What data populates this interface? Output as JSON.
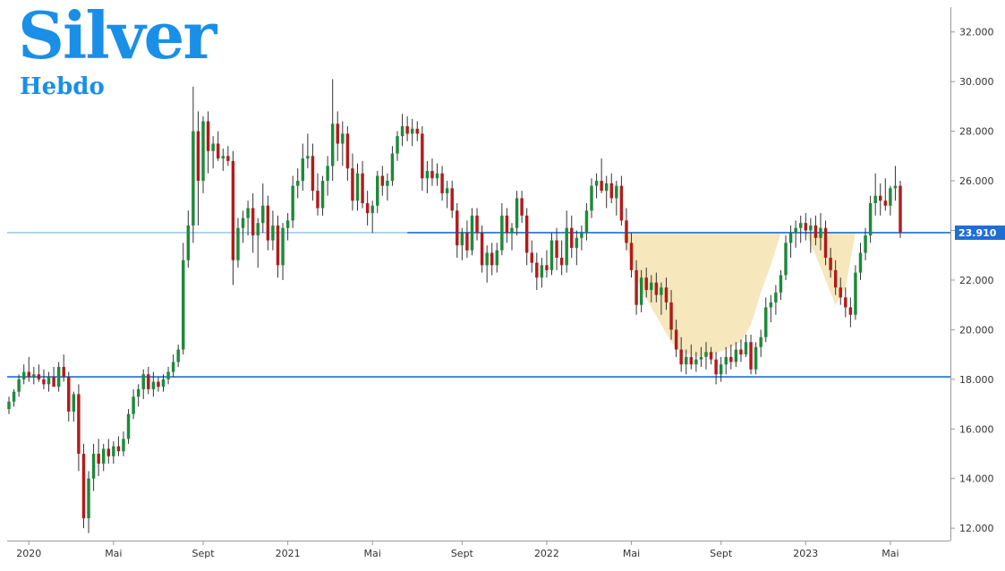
{
  "brand": {
    "title": "Silver",
    "subtitle": "Hebdo"
  },
  "colors": {
    "bull": "#1e8a3a",
    "bear": "#b31b1b",
    "wick": "#333333",
    "hline": "#1f6fd1",
    "hline_light": "#8fc2ee",
    "fill_zone": "#f6e7bc",
    "price_tag_bg": "#1f6fd1",
    "brand": "#1a8fe8"
  },
  "chart_data": {
    "type": "candlestick",
    "title": "",
    "ylim": [
      11.5,
      33
    ],
    "y_ticks": [
      {
        "value": 32,
        "label": "32.000"
      },
      {
        "value": 30,
        "label": "30.000"
      },
      {
        "value": 28,
        "label": "28.000"
      },
      {
        "value": 26,
        "label": "26.000"
      },
      {
        "value": 24,
        "label": "24.000"
      },
      {
        "value": 22,
        "label": "22.000"
      },
      {
        "value": 20,
        "label": "20.000"
      },
      {
        "value": 18,
        "label": "18.000"
      },
      {
        "value": 16,
        "label": "16.000"
      },
      {
        "value": 14,
        "label": "14.000"
      },
      {
        "value": 12,
        "label": "12.000"
      }
    ],
    "x_ticks": [
      {
        "index": 4,
        "label": "2020"
      },
      {
        "index": 21,
        "label": "Mai"
      },
      {
        "index": 39,
        "label": "Sept"
      },
      {
        "index": 56,
        "label": "2021"
      },
      {
        "index": 73,
        "label": "Mai"
      },
      {
        "index": 91,
        "label": "Sept"
      },
      {
        "index": 108,
        "label": "2022"
      },
      {
        "index": 125,
        "label": "Mai"
      },
      {
        "index": 143,
        "label": "Sept"
      },
      {
        "index": 160,
        "label": "2023"
      },
      {
        "index": 177,
        "label": "Mai"
      }
    ],
    "horizontal_lines": [
      {
        "value": 23.91,
        "style": "solid",
        "light_left": true
      },
      {
        "value": 18.1,
        "style": "solid",
        "light_left": false
      }
    ],
    "current_price": {
      "value": 23.91,
      "label": "23.910"
    },
    "shaded_zone": {
      "ceiling": 23.91,
      "points": [
        [
          123,
          23.91
        ],
        [
          125,
          22.8
        ],
        [
          127,
          21.6
        ],
        [
          129,
          20.9
        ],
        [
          131,
          20.2
        ],
        [
          133,
          19.5
        ],
        [
          135,
          19.1
        ],
        [
          138,
          18.9
        ],
        [
          141,
          19.0
        ],
        [
          144,
          19.2
        ],
        [
          147,
          19.5
        ],
        [
          149,
          20.2
        ],
        [
          151,
          21.5
        ],
        [
          153,
          22.6
        ],
        [
          155,
          23.91
        ],
        [
          160,
          23.91
        ],
        [
          162,
          23.0
        ],
        [
          164,
          22.0
        ],
        [
          166,
          21.0
        ],
        [
          168,
          21.7
        ],
        [
          170,
          23.91
        ]
      ]
    },
    "candles": [
      {
        "o": 16.8,
        "h": 17.3,
        "l": 16.6,
        "c": 17.1
      },
      {
        "o": 17.1,
        "h": 17.6,
        "l": 16.9,
        "c": 17.5
      },
      {
        "o": 17.5,
        "h": 18.2,
        "l": 17.3,
        "c": 18.0
      },
      {
        "o": 18.0,
        "h": 18.6,
        "l": 17.8,
        "c": 18.3
      },
      {
        "o": 18.3,
        "h": 18.9,
        "l": 17.9,
        "c": 18.1
      },
      {
        "o": 18.1,
        "h": 18.5,
        "l": 17.8,
        "c": 18.2
      },
      {
        "o": 18.2,
        "h": 18.6,
        "l": 17.9,
        "c": 18.0
      },
      {
        "o": 18.0,
        "h": 18.4,
        "l": 17.6,
        "c": 17.8
      },
      {
        "o": 17.8,
        "h": 18.3,
        "l": 17.5,
        "c": 18.1
      },
      {
        "o": 18.1,
        "h": 18.5,
        "l": 17.7,
        "c": 17.7
      },
      {
        "o": 17.7,
        "h": 18.7,
        "l": 17.5,
        "c": 18.5
      },
      {
        "o": 18.5,
        "h": 19.0,
        "l": 17.9,
        "c": 18.1
      },
      {
        "o": 18.1,
        "h": 18.3,
        "l": 16.3,
        "c": 16.7
      },
      {
        "o": 16.7,
        "h": 17.5,
        "l": 16.3,
        "c": 17.4
      },
      {
        "o": 17.4,
        "h": 17.8,
        "l": 14.3,
        "c": 15.0
      },
      {
        "o": 15.0,
        "h": 15.4,
        "l": 12.0,
        "c": 12.4
      },
      {
        "o": 12.4,
        "h": 14.3,
        "l": 11.8,
        "c": 14.0
      },
      {
        "o": 14.0,
        "h": 15.4,
        "l": 13.5,
        "c": 15.0
      },
      {
        "o": 15.0,
        "h": 15.6,
        "l": 14.1,
        "c": 14.6
      },
      {
        "o": 14.6,
        "h": 15.4,
        "l": 14.3,
        "c": 15.2
      },
      {
        "o": 15.2,
        "h": 15.6,
        "l": 14.6,
        "c": 14.9
      },
      {
        "o": 14.9,
        "h": 15.5,
        "l": 14.6,
        "c": 15.3
      },
      {
        "o": 15.3,
        "h": 15.7,
        "l": 14.9,
        "c": 15.1
      },
      {
        "o": 15.1,
        "h": 15.9,
        "l": 14.9,
        "c": 15.6
      },
      {
        "o": 15.6,
        "h": 16.8,
        "l": 15.4,
        "c": 16.6
      },
      {
        "o": 16.6,
        "h": 17.6,
        "l": 16.4,
        "c": 17.3
      },
      {
        "o": 17.3,
        "h": 17.8,
        "l": 16.9,
        "c": 17.6
      },
      {
        "o": 17.6,
        "h": 18.4,
        "l": 17.2,
        "c": 18.2
      },
      {
        "o": 18.2,
        "h": 18.5,
        "l": 17.4,
        "c": 17.6
      },
      {
        "o": 17.6,
        "h": 18.3,
        "l": 17.3,
        "c": 17.9
      },
      {
        "o": 17.9,
        "h": 18.1,
        "l": 17.5,
        "c": 17.7
      },
      {
        "o": 17.7,
        "h": 18.2,
        "l": 17.5,
        "c": 18.0
      },
      {
        "o": 18.0,
        "h": 18.5,
        "l": 17.8,
        "c": 18.3
      },
      {
        "o": 18.3,
        "h": 19.0,
        "l": 18.1,
        "c": 18.7
      },
      {
        "o": 18.7,
        "h": 19.4,
        "l": 18.5,
        "c": 19.2
      },
      {
        "o": 19.2,
        "h": 23.5,
        "l": 19.0,
        "c": 22.8
      },
      {
        "o": 22.8,
        "h": 24.8,
        "l": 22.5,
        "c": 24.2
      },
      {
        "o": 24.2,
        "h": 29.8,
        "l": 23.5,
        "c": 28.0
      },
      {
        "o": 28.0,
        "h": 28.8,
        "l": 24.2,
        "c": 26.0
      },
      {
        "o": 26.0,
        "h": 28.6,
        "l": 25.5,
        "c": 28.4
      },
      {
        "o": 28.4,
        "h": 28.8,
        "l": 26.3,
        "c": 27.2
      },
      {
        "o": 27.2,
        "h": 27.8,
        "l": 26.5,
        "c": 27.5
      },
      {
        "o": 27.5,
        "h": 28.0,
        "l": 26.8,
        "c": 26.9
      },
      {
        "o": 26.9,
        "h": 27.3,
        "l": 26.4,
        "c": 27.0
      },
      {
        "o": 27.0,
        "h": 27.4,
        "l": 26.6,
        "c": 26.8
      },
      {
        "o": 26.8,
        "h": 27.2,
        "l": 21.8,
        "c": 22.8
      },
      {
        "o": 22.8,
        "h": 24.5,
        "l": 22.5,
        "c": 24.1
      },
      {
        "o": 24.1,
        "h": 24.8,
        "l": 23.5,
        "c": 24.5
      },
      {
        "o": 24.5,
        "h": 25.2,
        "l": 23.8,
        "c": 24.9
      },
      {
        "o": 24.9,
        "h": 25.5,
        "l": 23.1,
        "c": 23.8
      },
      {
        "o": 23.8,
        "h": 24.5,
        "l": 22.5,
        "c": 24.3
      },
      {
        "o": 24.3,
        "h": 25.9,
        "l": 23.9,
        "c": 25.0
      },
      {
        "o": 25.0,
        "h": 25.4,
        "l": 23.2,
        "c": 23.6
      },
      {
        "o": 23.6,
        "h": 24.8,
        "l": 23.2,
        "c": 24.2
      },
      {
        "o": 24.2,
        "h": 24.6,
        "l": 22.1,
        "c": 22.6
      },
      {
        "o": 22.6,
        "h": 24.3,
        "l": 22.0,
        "c": 24.1
      },
      {
        "o": 24.1,
        "h": 24.7,
        "l": 23.6,
        "c": 24.4
      },
      {
        "o": 24.4,
        "h": 26.2,
        "l": 24.1,
        "c": 25.8
      },
      {
        "o": 25.8,
        "h": 26.5,
        "l": 25.3,
        "c": 26.0
      },
      {
        "o": 26.0,
        "h": 27.5,
        "l": 25.6,
        "c": 26.9
      },
      {
        "o": 26.9,
        "h": 27.9,
        "l": 26.5,
        "c": 27.0
      },
      {
        "o": 27.0,
        "h": 27.5,
        "l": 25.2,
        "c": 25.6
      },
      {
        "o": 25.6,
        "h": 26.3,
        "l": 24.6,
        "c": 24.9
      },
      {
        "o": 24.9,
        "h": 26.2,
        "l": 24.6,
        "c": 26.0
      },
      {
        "o": 26.0,
        "h": 27.0,
        "l": 25.4,
        "c": 26.6
      },
      {
        "o": 26.6,
        "h": 30.1,
        "l": 26.0,
        "c": 28.3
      },
      {
        "o": 28.3,
        "h": 28.8,
        "l": 26.8,
        "c": 27.5
      },
      {
        "o": 27.5,
        "h": 28.4,
        "l": 26.6,
        "c": 27.9
      },
      {
        "o": 27.9,
        "h": 28.2,
        "l": 26.0,
        "c": 26.5
      },
      {
        "o": 26.5,
        "h": 27.1,
        "l": 24.8,
        "c": 25.2
      },
      {
        "o": 25.2,
        "h": 26.7,
        "l": 24.8,
        "c": 26.3
      },
      {
        "o": 26.3,
        "h": 26.8,
        "l": 24.9,
        "c": 25.1
      },
      {
        "o": 25.1,
        "h": 25.6,
        "l": 24.2,
        "c": 24.7
      },
      {
        "o": 24.7,
        "h": 25.2,
        "l": 23.9,
        "c": 25.0
      },
      {
        "o": 25.0,
        "h": 26.4,
        "l": 24.7,
        "c": 26.2
      },
      {
        "o": 26.2,
        "h": 26.6,
        "l": 25.4,
        "c": 25.8
      },
      {
        "o": 25.8,
        "h": 26.3,
        "l": 25.2,
        "c": 26.0
      },
      {
        "o": 26.0,
        "h": 27.4,
        "l": 25.8,
        "c": 27.1
      },
      {
        "o": 27.1,
        "h": 28.0,
        "l": 26.8,
        "c": 27.8
      },
      {
        "o": 27.8,
        "h": 28.7,
        "l": 27.4,
        "c": 28.2
      },
      {
        "o": 28.2,
        "h": 28.6,
        "l": 27.6,
        "c": 27.9
      },
      {
        "o": 27.9,
        "h": 28.5,
        "l": 27.4,
        "c": 28.1
      },
      {
        "o": 28.1,
        "h": 28.4,
        "l": 27.6,
        "c": 27.9
      },
      {
        "o": 27.9,
        "h": 28.2,
        "l": 25.6,
        "c": 26.1
      },
      {
        "o": 26.1,
        "h": 26.8,
        "l": 25.5,
        "c": 26.4
      },
      {
        "o": 26.4,
        "h": 26.9,
        "l": 25.8,
        "c": 26.1
      },
      {
        "o": 26.1,
        "h": 26.7,
        "l": 25.8,
        "c": 26.3
      },
      {
        "o": 26.3,
        "h": 26.6,
        "l": 25.2,
        "c": 25.5
      },
      {
        "o": 25.5,
        "h": 26.0,
        "l": 24.9,
        "c": 25.7
      },
      {
        "o": 25.7,
        "h": 26.0,
        "l": 24.5,
        "c": 24.8
      },
      {
        "o": 24.8,
        "h": 25.1,
        "l": 22.9,
        "c": 23.4
      },
      {
        "o": 23.4,
        "h": 24.1,
        "l": 22.8,
        "c": 23.9
      },
      {
        "o": 23.9,
        "h": 24.4,
        "l": 22.9,
        "c": 23.2
      },
      {
        "o": 23.2,
        "h": 24.9,
        "l": 23.0,
        "c": 24.6
      },
      {
        "o": 24.6,
        "h": 24.9,
        "l": 23.6,
        "c": 23.9
      },
      {
        "o": 23.9,
        "h": 24.2,
        "l": 22.3,
        "c": 22.6
      },
      {
        "o": 22.6,
        "h": 23.4,
        "l": 21.9,
        "c": 23.1
      },
      {
        "o": 23.1,
        "h": 23.5,
        "l": 22.2,
        "c": 22.6
      },
      {
        "o": 22.6,
        "h": 23.5,
        "l": 22.3,
        "c": 23.2
      },
      {
        "o": 23.2,
        "h": 25.1,
        "l": 23.0,
        "c": 24.6
      },
      {
        "o": 24.6,
        "h": 24.9,
        "l": 23.5,
        "c": 23.9
      },
      {
        "o": 23.9,
        "h": 24.3,
        "l": 23.2,
        "c": 24.1
      },
      {
        "o": 24.1,
        "h": 25.6,
        "l": 23.8,
        "c": 25.3
      },
      {
        "o": 25.3,
        "h": 25.6,
        "l": 24.3,
        "c": 24.6
      },
      {
        "o": 24.6,
        "h": 24.9,
        "l": 22.6,
        "c": 23.1
      },
      {
        "o": 23.1,
        "h": 23.6,
        "l": 22.3,
        "c": 22.7
      },
      {
        "o": 22.7,
        "h": 23.1,
        "l": 21.6,
        "c": 22.1
      },
      {
        "o": 22.1,
        "h": 22.9,
        "l": 21.7,
        "c": 22.6
      },
      {
        "o": 22.6,
        "h": 23.2,
        "l": 22.1,
        "c": 22.4
      },
      {
        "o": 22.4,
        "h": 23.9,
        "l": 22.2,
        "c": 23.6
      },
      {
        "o": 23.6,
        "h": 24.1,
        "l": 22.4,
        "c": 22.9
      },
      {
        "o": 22.9,
        "h": 23.6,
        "l": 22.2,
        "c": 22.6
      },
      {
        "o": 22.6,
        "h": 24.8,
        "l": 22.3,
        "c": 24.1
      },
      {
        "o": 24.1,
        "h": 24.6,
        "l": 22.9,
        "c": 23.3
      },
      {
        "o": 23.3,
        "h": 24.0,
        "l": 22.6,
        "c": 23.7
      },
      {
        "o": 23.7,
        "h": 24.2,
        "l": 23.2,
        "c": 23.9
      },
      {
        "o": 23.9,
        "h": 25.1,
        "l": 23.6,
        "c": 24.8
      },
      {
        "o": 24.8,
        "h": 26.1,
        "l": 24.5,
        "c": 25.8
      },
      {
        "o": 25.8,
        "h": 26.3,
        "l": 25.3,
        "c": 26.0
      },
      {
        "o": 26.0,
        "h": 26.9,
        "l": 25.5,
        "c": 25.6
      },
      {
        "o": 25.6,
        "h": 26.2,
        "l": 24.9,
        "c": 25.9
      },
      {
        "o": 25.9,
        "h": 26.3,
        "l": 25.1,
        "c": 25.3
      },
      {
        "o": 25.3,
        "h": 26.0,
        "l": 24.6,
        "c": 25.8
      },
      {
        "o": 25.8,
        "h": 26.2,
        "l": 24.2,
        "c": 24.4
      },
      {
        "o": 24.4,
        "h": 24.9,
        "l": 23.2,
        "c": 23.5
      },
      {
        "o": 23.5,
        "h": 23.9,
        "l": 22.1,
        "c": 22.4
      },
      {
        "o": 22.4,
        "h": 22.8,
        "l": 20.6,
        "c": 21.0
      },
      {
        "o": 21.0,
        "h": 22.4,
        "l": 20.7,
        "c": 22.1
      },
      {
        "o": 22.1,
        "h": 22.5,
        "l": 21.3,
        "c": 21.6
      },
      {
        "o": 21.6,
        "h": 22.2,
        "l": 21.1,
        "c": 21.9
      },
      {
        "o": 21.9,
        "h": 22.3,
        "l": 21.1,
        "c": 21.4
      },
      {
        "o": 21.4,
        "h": 21.9,
        "l": 20.6,
        "c": 21.7
      },
      {
        "o": 21.7,
        "h": 22.1,
        "l": 20.8,
        "c": 21.1
      },
      {
        "o": 21.1,
        "h": 21.6,
        "l": 19.6,
        "c": 20.0
      },
      {
        "o": 20.0,
        "h": 20.4,
        "l": 18.9,
        "c": 19.2
      },
      {
        "o": 19.2,
        "h": 19.7,
        "l": 18.3,
        "c": 18.6
      },
      {
        "o": 18.6,
        "h": 19.2,
        "l": 18.2,
        "c": 18.9
      },
      {
        "o": 18.9,
        "h": 19.4,
        "l": 18.4,
        "c": 18.6
      },
      {
        "o": 18.6,
        "h": 19.1,
        "l": 18.3,
        "c": 18.8
      },
      {
        "o": 18.8,
        "h": 19.3,
        "l": 18.5,
        "c": 18.9
      },
      {
        "o": 18.9,
        "h": 19.5,
        "l": 18.4,
        "c": 19.1
      },
      {
        "o": 19.1,
        "h": 19.3,
        "l": 18.6,
        "c": 18.8
      },
      {
        "o": 18.8,
        "h": 19.1,
        "l": 17.8,
        "c": 18.2
      },
      {
        "o": 18.2,
        "h": 18.9,
        "l": 17.9,
        "c": 18.6
      },
      {
        "o": 18.6,
        "h": 19.3,
        "l": 18.2,
        "c": 18.9
      },
      {
        "o": 18.9,
        "h": 19.4,
        "l": 18.4,
        "c": 18.7
      },
      {
        "o": 18.7,
        "h": 19.5,
        "l": 18.5,
        "c": 19.2
      },
      {
        "o": 19.2,
        "h": 19.6,
        "l": 18.7,
        "c": 19.0
      },
      {
        "o": 19.0,
        "h": 19.8,
        "l": 18.9,
        "c": 19.5
      },
      {
        "o": 19.5,
        "h": 19.8,
        "l": 18.2,
        "c": 18.4
      },
      {
        "o": 18.4,
        "h": 19.5,
        "l": 18.2,
        "c": 19.3
      },
      {
        "o": 19.3,
        "h": 20.0,
        "l": 18.9,
        "c": 19.7
      },
      {
        "o": 19.7,
        "h": 21.3,
        "l": 19.5,
        "c": 20.9
      },
      {
        "o": 20.9,
        "h": 21.4,
        "l": 20.3,
        "c": 21.1
      },
      {
        "o": 21.1,
        "h": 21.8,
        "l": 20.6,
        "c": 21.5
      },
      {
        "o": 21.5,
        "h": 22.4,
        "l": 21.2,
        "c": 22.2
      },
      {
        "o": 22.2,
        "h": 23.8,
        "l": 22.0,
        "c": 23.5
      },
      {
        "o": 23.5,
        "h": 24.2,
        "l": 22.9,
        "c": 23.9
      },
      {
        "o": 23.9,
        "h": 24.4,
        "l": 23.3,
        "c": 24.1
      },
      {
        "o": 24.1,
        "h": 24.6,
        "l": 23.5,
        "c": 24.3
      },
      {
        "o": 24.3,
        "h": 24.7,
        "l": 23.6,
        "c": 24.0
      },
      {
        "o": 24.0,
        "h": 24.5,
        "l": 23.1,
        "c": 24.2
      },
      {
        "o": 24.2,
        "h": 24.6,
        "l": 23.4,
        "c": 23.7
      },
      {
        "o": 23.7,
        "h": 24.7,
        "l": 23.2,
        "c": 24.1
      },
      {
        "o": 24.1,
        "h": 24.4,
        "l": 22.6,
        "c": 22.9
      },
      {
        "o": 22.9,
        "h": 23.3,
        "l": 22.1,
        "c": 22.4
      },
      {
        "o": 22.4,
        "h": 22.8,
        "l": 21.4,
        "c": 21.7
      },
      {
        "o": 21.7,
        "h": 22.1,
        "l": 21.0,
        "c": 21.3
      },
      {
        "o": 21.3,
        "h": 21.7,
        "l": 20.5,
        "c": 20.9
      },
      {
        "o": 20.9,
        "h": 21.3,
        "l": 20.1,
        "c": 20.6
      },
      {
        "o": 20.6,
        "h": 22.6,
        "l": 20.4,
        "c": 22.3
      },
      {
        "o": 22.3,
        "h": 23.5,
        "l": 22.0,
        "c": 23.1
      },
      {
        "o": 23.1,
        "h": 24.1,
        "l": 22.8,
        "c": 23.8
      },
      {
        "o": 23.8,
        "h": 25.4,
        "l": 23.5,
        "c": 25.1
      },
      {
        "o": 25.1,
        "h": 26.3,
        "l": 24.6,
        "c": 25.4
      },
      {
        "o": 25.4,
        "h": 25.9,
        "l": 24.6,
        "c": 25.2
      },
      {
        "o": 25.2,
        "h": 26.1,
        "l": 24.8,
        "c": 25.0
      },
      {
        "o": 25.0,
        "h": 25.8,
        "l": 24.6,
        "c": 25.7
      },
      {
        "o": 25.7,
        "h": 26.6,
        "l": 25.2,
        "c": 25.8
      },
      {
        "o": 25.8,
        "h": 26.0,
        "l": 23.7,
        "c": 23.91
      }
    ]
  }
}
